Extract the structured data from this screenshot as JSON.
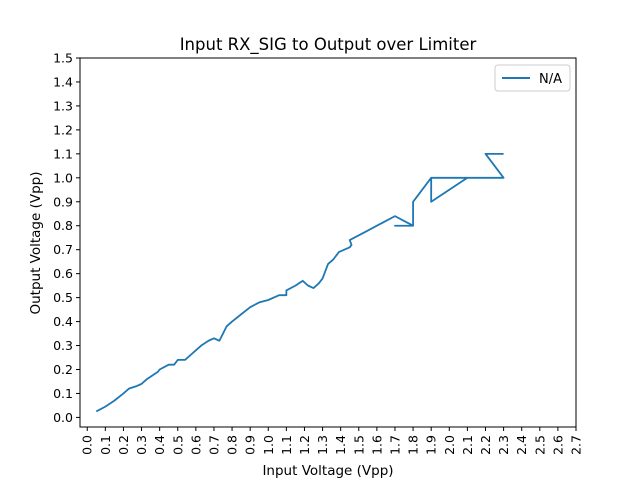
{
  "chart_data": {
    "type": "line",
    "title": "Input RX_SIG to Output over Limiter",
    "xlabel": "Input Voltage (Vpp)",
    "ylabel": "Output Voltage (Vpp)",
    "xlim": [
      -0.04,
      2.7
    ],
    "ylim": [
      -0.04,
      1.5
    ],
    "x_ticks": [
      0.0,
      0.1,
      0.2,
      0.3,
      0.4,
      0.5,
      0.6,
      0.7,
      0.8,
      0.9,
      1.0,
      1.1,
      1.2,
      1.3,
      1.4,
      1.5,
      1.6,
      1.7,
      1.8,
      1.9,
      2.0,
      2.1,
      2.2,
      2.3,
      2.4,
      2.5,
      2.6,
      2.7
    ],
    "x_tick_labels": [
      "0.0",
      "0.1",
      "0.2",
      "0.3",
      "0.4",
      "0.5",
      "0.6",
      "0.7",
      "0.8",
      "0.9",
      "1.0",
      "1.1",
      "1.2",
      "1.3",
      "1.4",
      "1.5",
      "1.6",
      "1.7",
      "1.8",
      "1.9",
      "2.0",
      "2.1",
      "2.2",
      "2.3",
      "2.4",
      "2.5",
      "2.6",
      "2.7"
    ],
    "y_ticks": [
      0.0,
      0.1,
      0.2,
      0.3,
      0.4,
      0.5,
      0.6,
      0.7,
      0.8,
      0.9,
      1.0,
      1.1,
      1.2,
      1.3,
      1.4,
      1.5
    ],
    "y_tick_labels": [
      "0.0",
      "0.1",
      "0.2",
      "0.3",
      "0.4",
      "0.5",
      "0.6",
      "0.7",
      "0.8",
      "0.9",
      "1.0",
      "1.1",
      "1.2",
      "1.3",
      "1.4",
      "1.5"
    ],
    "x_tick_rotation": "vertical",
    "grid": false,
    "legend_position": "top-right",
    "series": [
      {
        "name": "N/A",
        "color": "#1f77b4",
        "x": [
          0.05,
          0.1,
          0.15,
          0.2,
          0.23,
          0.27,
          0.3,
          0.33,
          0.37,
          0.39,
          0.4,
          0.45,
          0.48,
          0.5,
          0.54,
          0.57,
          0.6,
          0.63,
          0.67,
          0.7,
          0.73,
          0.75,
          0.77,
          0.8,
          0.85,
          0.9,
          0.95,
          1.0,
          1.06,
          1.1,
          1.1,
          1.15,
          1.19,
          1.22,
          1.25,
          1.28,
          1.3,
          1.33,
          1.36,
          1.39,
          1.42,
          1.45,
          1.46,
          1.45,
          1.5,
          1.55,
          1.6,
          1.65,
          1.7,
          1.7,
          1.75,
          1.8,
          1.73,
          1.7,
          1.8,
          1.8,
          1.85,
          1.9,
          2.0,
          2.1,
          1.9,
          1.9,
          2.0,
          2.3,
          2.2,
          2.3
        ],
        "y": [
          0.025,
          0.045,
          0.07,
          0.1,
          0.12,
          0.13,
          0.14,
          0.16,
          0.18,
          0.19,
          0.2,
          0.22,
          0.22,
          0.24,
          0.24,
          0.26,
          0.28,
          0.3,
          0.32,
          0.33,
          0.32,
          0.35,
          0.38,
          0.4,
          0.43,
          0.46,
          0.48,
          0.49,
          0.51,
          0.51,
          0.53,
          0.55,
          0.57,
          0.55,
          0.54,
          0.56,
          0.58,
          0.64,
          0.66,
          0.69,
          0.7,
          0.71,
          0.72,
          0.74,
          0.76,
          0.78,
          0.8,
          0.82,
          0.84,
          0.84,
          0.82,
          0.8,
          0.8,
          0.8,
          0.8,
          0.9,
          0.95,
          1.0,
          1.0,
          1.0,
          0.9,
          1.0,
          1.0,
          1.0,
          1.1,
          1.1
        ]
      }
    ]
  }
}
